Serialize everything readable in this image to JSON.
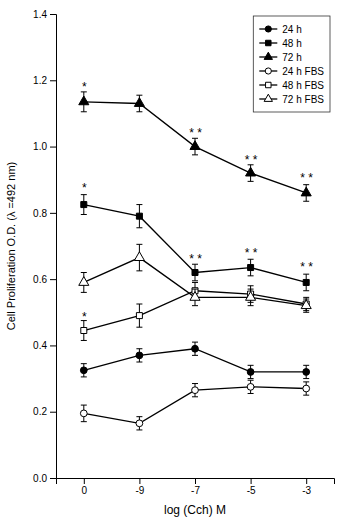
{
  "chart_data": {
    "type": "line",
    "xlabel": "log (Cch) M",
    "ylabel": "Cell Proliferation O.D. (λ =492 nm)",
    "categories": [
      "0",
      "-9",
      "-7",
      "-5",
      "-3"
    ],
    "ylim": [
      0.0,
      1.4
    ],
    "yticks": [
      {
        "value": 0.0,
        "label": "0.0"
      },
      0.2,
      0.4,
      0.6,
      0.8,
      {
        "value": 1.0,
        "label": "1.0"
      },
      1.2,
      1.4
    ],
    "legend": "upper right",
    "series": [
      {
        "name": "24 h",
        "marker": "filled-circle",
        "color": "black",
        "values": [
          0.325,
          0.37,
          0.39,
          0.32,
          0.32
        ],
        "errors": [
          0.02,
          0.02,
          0.02,
          0.02,
          0.02
        ]
      },
      {
        "name": "48 h",
        "marker": "filled-square",
        "color": "black",
        "values": [
          0.825,
          0.79,
          0.62,
          0.635,
          0.59
        ],
        "errors": [
          0.03,
          0.035,
          0.025,
          0.025,
          0.025
        ]
      },
      {
        "name": "72 h",
        "marker": "filled-triangle",
        "color": "black",
        "values": [
          1.135,
          1.13,
          1.0,
          0.92,
          0.86
        ],
        "errors": [
          0.03,
          0.025,
          0.025,
          0.025,
          0.025
        ]
      },
      {
        "name": "24 h FBS",
        "marker": "open-circle",
        "color": "black",
        "values": [
          0.195,
          0.165,
          0.265,
          0.275,
          0.27
        ],
        "errors": [
          0.025,
          0.02,
          0.02,
          0.02,
          0.02
        ]
      },
      {
        "name": "48 h FBS",
        "marker": "open-square",
        "color": "black",
        "values": [
          0.445,
          0.49,
          0.565,
          0.555,
          0.525
        ],
        "errors": [
          0.03,
          0.035,
          0.025,
          0.025,
          0.02
        ]
      },
      {
        "name": "72 h FBS",
        "marker": "open-triangle",
        "color": "black",
        "values": [
          0.59,
          0.665,
          0.545,
          0.545,
          0.52
        ],
        "errors": [
          0.03,
          0.04,
          0.025,
          0.025,
          0.02
        ]
      }
    ],
    "annotations": [
      {
        "text": "*",
        "x": "0",
        "y": 1.18
      },
      {
        "text": "*",
        "x": "0",
        "y": 0.875
      },
      {
        "text": "*",
        "x": "0",
        "y": 0.485
      },
      {
        "text": "* *",
        "x": "-7",
        "y": 1.042
      },
      {
        "text": "* *",
        "x": "-7",
        "y": 0.66
      },
      {
        "text": "* *",
        "x": "-5",
        "y": 0.96
      },
      {
        "text": "* *",
        "x": "-5",
        "y": 0.68
      },
      {
        "text": "* *",
        "x": "-3",
        "y": 0.905
      },
      {
        "text": "* *",
        "x": "-3",
        "y": 0.638
      }
    ]
  }
}
